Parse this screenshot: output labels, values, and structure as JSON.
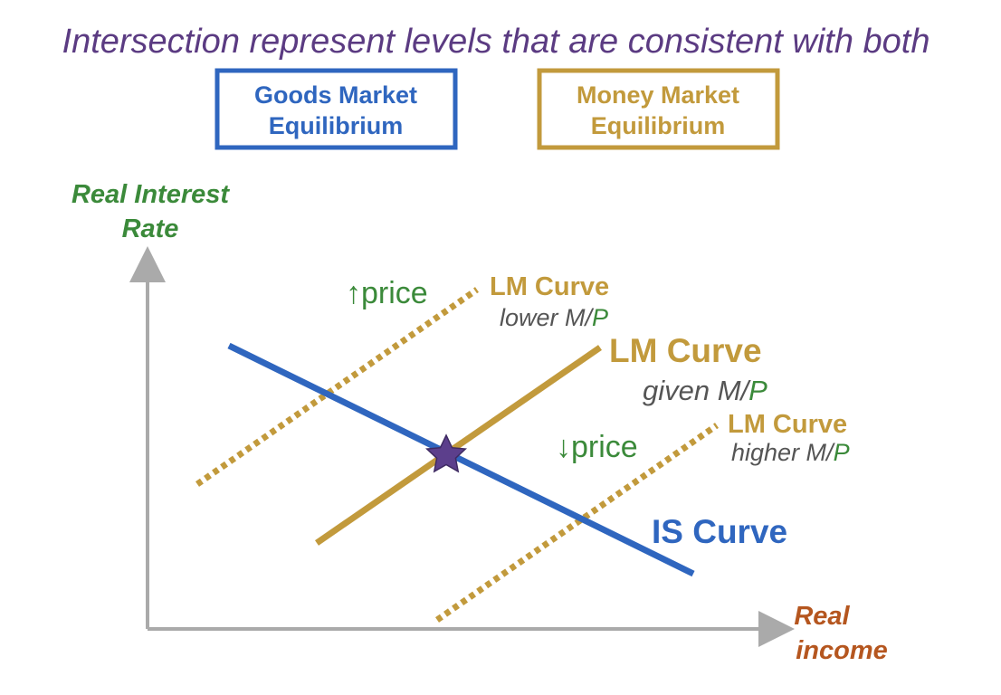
{
  "colors": {
    "title": "#5b3b82",
    "goods_blue": "#2f66bf",
    "money_gold": "#c29a3c",
    "axis_label_green": "#3b8a3a",
    "income_orange": "#b5561f",
    "axis_gray": "#aaaaaa",
    "star_purple": "#5c3f8c",
    "subtitle_gray": "#555555"
  },
  "headline": "Intersection represent levels that are consistent with both",
  "boxes": {
    "goods": {
      "line1": "Goods Market",
      "line2": "Equilibrium"
    },
    "money": {
      "line1": "Money Market",
      "line2": "Equilibrium"
    }
  },
  "axes": {
    "y": {
      "line1": "Real Interest",
      "line2": "Rate"
    },
    "x": {
      "line1": "Real",
      "line2": "income"
    }
  },
  "curves": {
    "lm_lower": {
      "title": "LM Curve",
      "sub_prefix": "lower M/",
      "sub_p": "P",
      "style": "dotted"
    },
    "lm_given": {
      "title": "LM Curve",
      "sub_prefix": "given M/",
      "sub_p": "P",
      "style": "solid"
    },
    "lm_higher": {
      "title": "LM Curve",
      "sub_prefix": "higher M/",
      "sub_p": "P",
      "style": "dotted"
    },
    "is": {
      "title": "IS Curve",
      "style": "solid"
    }
  },
  "price_labels": {
    "up": {
      "arrow": "↑",
      "text": "price"
    },
    "down": {
      "arrow": "↓",
      "text": "price"
    }
  },
  "equilibrium_marker": "star-icon"
}
